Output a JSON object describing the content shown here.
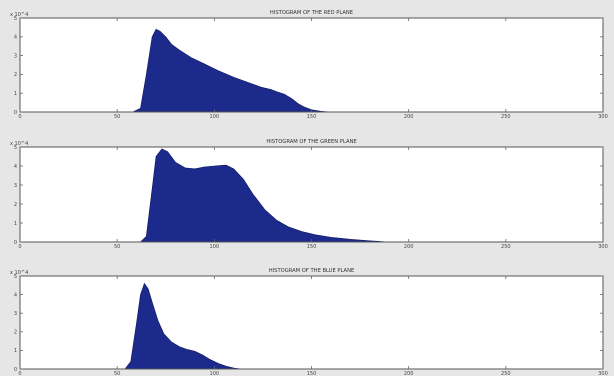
{
  "chart_data": [
    {
      "type": "area",
      "title": "HISTOGRAM OF THE RED PLANE",
      "y_exponent": "x 10^4",
      "xlim": [
        0,
        300
      ],
      "ylim": [
        0,
        5
      ],
      "xticks": [
        0,
        50,
        100,
        150,
        200,
        250,
        300
      ],
      "yticks": [
        0,
        1,
        2,
        3,
        4,
        5
      ],
      "color": "#1c2a8c",
      "series": [
        {
          "x": [
            0,
            58,
            62,
            65,
            68,
            70,
            72,
            75,
            78,
            82,
            88,
            95,
            102,
            110,
            118,
            124,
            129,
            132,
            136,
            140,
            143,
            146,
            150,
            155,
            160,
            300
          ],
          "y": [
            0,
            0,
            0.2,
            2.0,
            4.0,
            4.4,
            4.3,
            4.0,
            3.6,
            3.3,
            2.9,
            2.55,
            2.2,
            1.85,
            1.55,
            1.32,
            1.2,
            1.08,
            0.95,
            0.7,
            0.45,
            0.28,
            0.12,
            0.04,
            0,
            0
          ]
        }
      ]
    },
    {
      "type": "area",
      "title": "HISTOGRAM OF THE GREEN PLANE",
      "y_exponent": "x 10^4",
      "xlim": [
        0,
        300
      ],
      "ylim": [
        0,
        5
      ],
      "xticks": [
        0,
        50,
        100,
        150,
        200,
        250,
        300
      ],
      "yticks": [
        0,
        1,
        2,
        3,
        4,
        5
      ],
      "color": "#1c2a8c",
      "series": [
        {
          "x": [
            0,
            62,
            65,
            68,
            70,
            73,
            76,
            80,
            85,
            90,
            95,
            100,
            106,
            110,
            115,
            120,
            126,
            132,
            138,
            145,
            152,
            160,
            170,
            180,
            190,
            300
          ],
          "y": [
            0,
            0,
            0.3,
            2.8,
            4.5,
            4.9,
            4.75,
            4.2,
            3.9,
            3.85,
            3.95,
            4.0,
            4.05,
            3.85,
            3.3,
            2.5,
            1.7,
            1.15,
            0.8,
            0.55,
            0.38,
            0.25,
            0.14,
            0.06,
            0,
            0
          ]
        }
      ]
    },
    {
      "type": "area",
      "title": "HISTOGRAM OF THE BLUE PLANE",
      "y_exponent": "x 10^4",
      "xlim": [
        0,
        300
      ],
      "ylim": [
        0,
        5
      ],
      "xticks": [
        0,
        50,
        100,
        150,
        200,
        250,
        300
      ],
      "yticks": [
        0,
        1,
        2,
        3,
        4,
        5
      ],
      "color": "#1c2a8c",
      "series": [
        {
          "x": [
            0,
            54,
            57,
            60,
            62,
            64,
            66,
            68,
            71,
            74,
            78,
            82,
            86,
            90,
            94,
            98,
            102,
            106,
            110,
            114,
            300
          ],
          "y": [
            0,
            0,
            0.4,
            2.5,
            4.0,
            4.6,
            4.3,
            3.6,
            2.6,
            1.9,
            1.45,
            1.2,
            1.05,
            0.95,
            0.75,
            0.5,
            0.3,
            0.15,
            0.05,
            0,
            0
          ]
        }
      ]
    }
  ]
}
